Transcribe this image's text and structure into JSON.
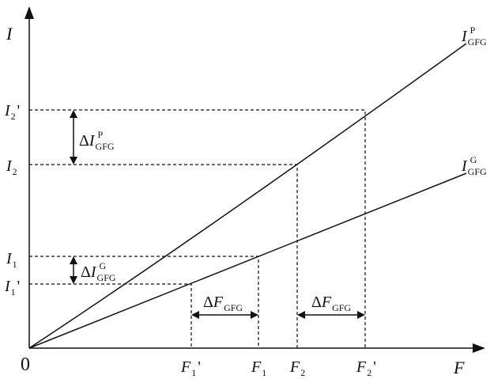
{
  "axes": {
    "y_label": "I",
    "x_label": "F",
    "origin": "0"
  },
  "curves": [
    {
      "main": "I",
      "sub": "GFG",
      "sup": "P"
    },
    {
      "main": "I",
      "sub": "GFG",
      "sup": "G"
    }
  ],
  "y_levels": [
    {
      "main": "I",
      "sub": "2",
      "suffix": "'"
    },
    {
      "main": "I",
      "sub": "2"
    },
    {
      "main": "I",
      "sub": "1"
    },
    {
      "main": "I",
      "sub": "1",
      "suffix": "'"
    }
  ],
  "x_levels": [
    {
      "main": "F",
      "sub": "1",
      "suffix": "'"
    },
    {
      "main": "F",
      "sub": "1"
    },
    {
      "main": "F",
      "sub": "2"
    },
    {
      "main": "F",
      "sub": "2",
      "suffix": "'"
    }
  ],
  "deltas": [
    {
      "prefix": "Δ",
      "main": "I",
      "sub": "GFG",
      "sup": "P"
    },
    {
      "prefix": "Δ",
      "main": "I",
      "sub": "GFG",
      "sup": "G"
    },
    {
      "prefix": "Δ",
      "main": "F",
      "sub": "GFG"
    },
    {
      "prefix": "Δ",
      "main": "F",
      "sub": "GFG"
    }
  ]
}
